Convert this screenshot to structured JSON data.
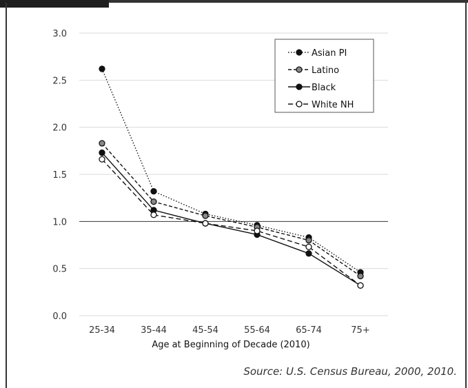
{
  "chart_data": {
    "type": "line",
    "categories": [
      "25-34",
      "35-44",
      "45-54",
      "55-64",
      "65-74",
      "75+"
    ],
    "xlabel": "Age at Beginning of Decade (2010)",
    "ylabel": "",
    "ylim": [
      0,
      3.0
    ],
    "yticks": [
      0.0,
      0.5,
      1.0,
      1.5,
      2.0,
      2.5,
      3.0
    ],
    "ytick_labels": [
      "0.0",
      "0.5",
      "1.0",
      "1.5",
      "2.0",
      "2.5",
      "3.0"
    ],
    "grid": true,
    "reference_line": 1.0,
    "legend_position": "top-right",
    "series": [
      {
        "name": "Asian PI",
        "values": [
          2.62,
          1.32,
          1.08,
          0.96,
          0.83,
          0.46
        ],
        "line_style": "dotted",
        "marker": "filled-black"
      },
      {
        "name": "Latino",
        "values": [
          1.83,
          1.21,
          1.06,
          0.94,
          0.8,
          0.42
        ],
        "line_style": "dashed",
        "marker": "filled-gray"
      },
      {
        "name": "Black",
        "values": [
          1.73,
          1.12,
          0.98,
          0.86,
          0.66,
          0.32
        ],
        "line_style": "solid",
        "marker": "filled-black"
      },
      {
        "name": "White NH",
        "values": [
          1.66,
          1.07,
          0.98,
          0.9,
          0.73,
          0.32
        ],
        "line_style": "long-dashed",
        "marker": "hollow"
      }
    ]
  },
  "source": "Source: U.S. Census Bureau, 2000, 2010.",
  "colors": {
    "line": "#111111",
    "gray_marker": "#888888",
    "grid": "#d9d9d9",
    "frame": "#333333"
  }
}
